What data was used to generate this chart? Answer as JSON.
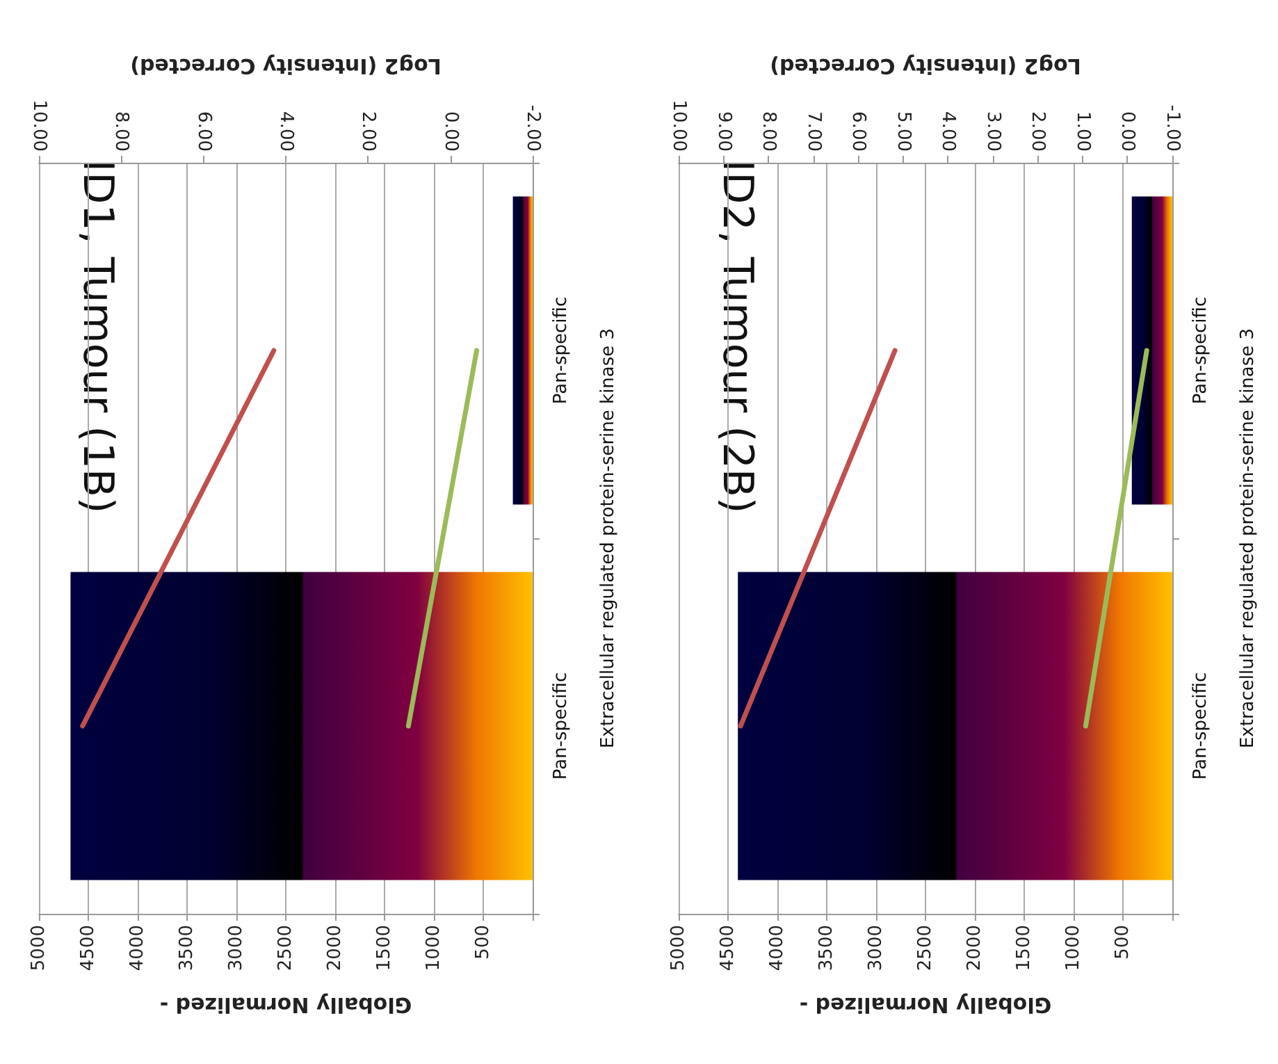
{
  "chart_data": [
    {
      "type": "bar",
      "orientation": "horizontal",
      "title": "ID1, Tumour (1B)",
      "ylabel": "Extracellular regulated protein-serine kinase 3",
      "xlabel": "Globally Normalized -",
      "x2label": "Log2 (Intensity Corrected)",
      "categories": [
        "Pan-specific",
        "Pan-specific"
      ],
      "grid": "x",
      "marker": "none",
      "series": [
        {
          "type": "bar",
          "color": "#000040",
          "values": [
            200,
            4680
          ]
        },
        {
          "type": "line",
          "axis": "x2",
          "color": "#c0504d",
          "values": [
            4.29,
            8.94
          ]
        },
        {
          "type": "line",
          "axis": "x2",
          "color": "#9bbb59",
          "values": [
            -0.64,
            1.02
          ]
        }
      ],
      "xlim": [
        5000,
        0
      ],
      "xticks": [
        {
          "value": 0,
          "label": null
        },
        500,
        1000,
        1500,
        2000,
        2500,
        3000,
        3500,
        4000,
        4500,
        5000
      ],
      "x2lim": [
        10,
        -2
      ],
      "x2ticks": [
        {
          "value": -2,
          "label": "-2.00"
        },
        {
          "value": 0,
          "label": "0.00"
        },
        {
          "value": 2,
          "label": "2.00"
        },
        {
          "value": 4,
          "label": "4.00"
        },
        {
          "value": 6,
          "label": "6.00"
        },
        {
          "value": 8,
          "label": "8.00"
        },
        {
          "value": 10,
          "label": "10.00"
        }
      ]
    },
    {
      "type": "bar",
      "orientation": "horizontal",
      "title": "ID2, Tumour (2B)",
      "ylabel": "Extracellular regulated protein-serine kinase 3",
      "xlabel": "Globally Normalized -",
      "x2label": "Log2 (Intensity Corrected)",
      "categories": [
        "Pan-specific",
        "Pan-specific"
      ],
      "grid": "x",
      "marker": "none",
      "series": [
        {
          "type": "bar",
          "color": "#000040",
          "values": [
            410,
            4400
          ]
        },
        {
          "type": "line",
          "axis": "x2",
          "color": "#c0504d",
          "values": [
            5.18,
            8.62
          ]
        },
        {
          "type": "line",
          "axis": "x2",
          "color": "#9bbb59",
          "values": [
            -0.43,
            0.93
          ]
        }
      ],
      "xlim": [
        5000,
        0
      ],
      "xticks": [
        {
          "value": 0,
          "label": null
        },
        500,
        1000,
        1500,
        2000,
        2500,
        3000,
        3500,
        4000,
        4500,
        5000
      ],
      "x2lim": [
        10,
        -1
      ],
      "x2ticks": [
        {
          "value": -1,
          "label": "-1.00"
        },
        {
          "value": 0,
          "label": "0.00"
        },
        {
          "value": 1,
          "label": "1.00"
        },
        {
          "value": 2,
          "label": "2.00"
        },
        {
          "value": 3,
          "label": "3.00"
        },
        {
          "value": 4,
          "label": "4.00"
        },
        {
          "value": 5,
          "label": "5.00"
        },
        {
          "value": 6,
          "label": "6.00"
        },
        {
          "value": 7,
          "label": "7.00"
        },
        {
          "value": 8,
          "label": "8.00"
        },
        {
          "value": 9,
          "label": "9.00"
        },
        {
          "value": 10,
          "label": "10.00"
        }
      ]
    }
  ]
}
